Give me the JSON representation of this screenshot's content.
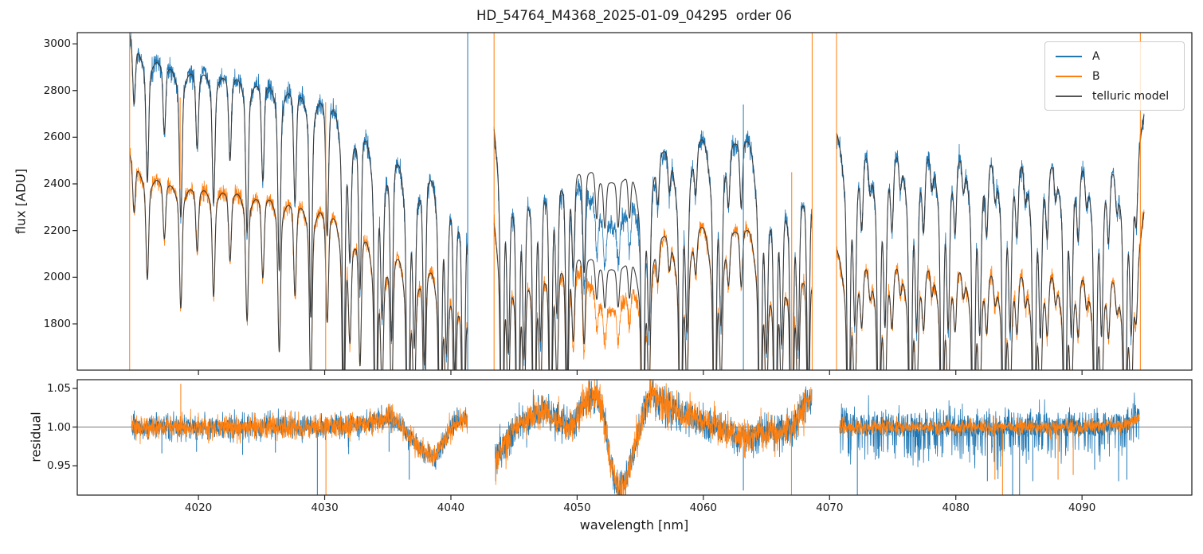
{
  "chart_data": {
    "type": "line",
    "title": "HD_54764_M4368_2025-01-09_04295  order 06",
    "xlabel": "wavelength [nm]",
    "xlim": [
      4010.4,
      4098.7
    ],
    "xticks": [
      4020,
      4030,
      4040,
      4050,
      4060,
      4070,
      4080,
      4090
    ],
    "xtick_labels": [
      "4020",
      "4030",
      "4040",
      "4050",
      "4060",
      "4070",
      "4080",
      "4090"
    ],
    "panels": [
      {
        "name": "flux",
        "ylabel": "flux [ADU]",
        "ylim": [
          1602,
          3048
        ],
        "yticks": [
          1800,
          2000,
          2200,
          2400,
          2600,
          2800,
          3000
        ],
        "ytick_labels": [
          "1800",
          "2000",
          "2200",
          "2400",
          "2600",
          "2800",
          "3000"
        ]
      },
      {
        "name": "residual",
        "ylabel": "residual",
        "ylim": [
          0.912,
          1.0613
        ],
        "yticks": [
          0.95,
          1.0,
          1.05
        ],
        "ytick_labels": [
          "0.95",
          "1.00",
          "1.05"
        ],
        "axhline": 1.0
      }
    ],
    "legend": [
      {
        "label": "A",
        "color": "#1f77b4"
      },
      {
        "label": "B",
        "color": "#ff7f0e"
      },
      {
        "label": "telluric model",
        "color": "#555555"
      }
    ],
    "colors": {
      "A": "#1f77b4",
      "B": "#ff7f0e",
      "model": "#3d3d3d",
      "frame": "#262626",
      "axhline": "#666666"
    },
    "seed": 7,
    "step": 0.018,
    "segments": [
      [
        4014.55,
        4041.33
      ],
      [
        4043.42,
        4068.62
      ],
      [
        4070.55,
        4094.92
      ]
    ],
    "telluric": {
      "narrow_sigma": 0.1,
      "wing_sigma": 0.42,
      "wing_frac": 0.3,
      "doublet_min_depth": 0.3,
      "doublet_offset": 0.5,
      "doublet_ratio": 0.45,
      "lines": [
        [
          4014.9,
          0.08
        ],
        [
          4015.95,
          0.15
        ],
        [
          4017.3,
          0.09
        ],
        [
          4018.6,
          0.18
        ],
        [
          4019.9,
          0.1
        ],
        [
          4021.2,
          0.16
        ],
        [
          4022.5,
          0.11
        ],
        [
          4023.85,
          0.19
        ],
        [
          4025.1,
          0.13
        ],
        [
          4026.4,
          0.23
        ],
        [
          4027.65,
          0.15
        ],
        [
          4028.9,
          0.28
        ],
        [
          4030.2,
          0.18
        ],
        [
          4031.5,
          0.34
        ],
        [
          4032.8,
          0.22
        ],
        [
          4034.05,
          0.42
        ],
        [
          4035.3,
          0.26
        ],
        [
          4036.6,
          0.46
        ],
        [
          4037.9,
          0.28
        ],
        [
          4039.15,
          0.45
        ],
        [
          4040.3,
          0.26
        ],
        [
          4041.0,
          0.4
        ],
        [
          4044.05,
          0.48
        ],
        [
          4045.3,
          0.5
        ],
        [
          4046.6,
          0.46
        ],
        [
          4047.9,
          0.4
        ],
        [
          4049.2,
          0.3
        ],
        [
          4050.55,
          0.16
        ],
        [
          4051.55,
          0.07
        ],
        [
          4052.2,
          0.075
        ],
        [
          4053.25,
          0.075
        ],
        [
          4054.15,
          0.07
        ],
        [
          4055.2,
          0.42
        ],
        [
          4056.4,
          0.07
        ],
        [
          4057.3,
          0.06
        ],
        [
          4058.2,
          0.44
        ],
        [
          4059.4,
          0.07
        ],
        [
          4060.9,
          0.43
        ],
        [
          4062.0,
          0.08
        ],
        [
          4063.0,
          0.1
        ],
        [
          4064.5,
          0.45
        ],
        [
          4065.7,
          0.44
        ],
        [
          4067.0,
          0.46
        ],
        [
          4068.3,
          0.3
        ],
        [
          4071.5,
          0.42
        ],
        [
          4072.55,
          0.1
        ],
        [
          4073.2,
          0.05
        ],
        [
          4073.9,
          0.42
        ],
        [
          4074.95,
          0.1
        ],
        [
          4075.6,
          0.05
        ],
        [
          4076.4,
          0.43
        ],
        [
          4077.45,
          0.1
        ],
        [
          4078.1,
          0.05
        ],
        [
          4078.9,
          0.42
        ],
        [
          4079.95,
          0.1
        ],
        [
          4080.6,
          0.05
        ],
        [
          4081.4,
          0.43
        ],
        [
          4082.45,
          0.1
        ],
        [
          4083.1,
          0.05
        ],
        [
          4083.8,
          0.42
        ],
        [
          4084.85,
          0.1
        ],
        [
          4085.5,
          0.05
        ],
        [
          4086.2,
          0.43
        ],
        [
          4087.25,
          0.1
        ],
        [
          4087.9,
          0.05
        ],
        [
          4088.65,
          0.42
        ],
        [
          4089.7,
          0.1
        ],
        [
          4090.35,
          0.05
        ],
        [
          4091.05,
          0.42
        ],
        [
          4092.1,
          0.1
        ],
        [
          4092.75,
          0.05
        ],
        [
          4093.4,
          0.42
        ],
        [
          4094.3,
          0.08
        ]
      ]
    },
    "broad_feature": {
      "center": 4052.75,
      "sigma": 1.8,
      "data_depth": {
        "A": 0.148,
        "B": 0.165
      },
      "model_depth": {
        "A": 0.075,
        "B": 0.085
      }
    },
    "flux_series": {
      "A": {
        "noise_sigma": 22,
        "base": [
          [
            4014.55,
            3090
          ],
          [
            4016,
            2990
          ],
          [
            4018,
            2950
          ],
          [
            4020,
            2935
          ],
          [
            4023,
            2915
          ],
          [
            4026,
            2900
          ],
          [
            4029,
            2875
          ],
          [
            4031,
            2830
          ],
          [
            4033,
            2755
          ],
          [
            4035,
            2670
          ],
          [
            4037,
            2612
          ],
          [
            4039,
            2588
          ],
          [
            4041.35,
            2580
          ],
          [
            4043.42,
            2770
          ],
          [
            4044.5,
            2712
          ],
          [
            4046,
            2700
          ],
          [
            4048,
            2678
          ],
          [
            4050,
            2668
          ],
          [
            4052,
            2660
          ],
          [
            4054,
            2648
          ],
          [
            4056,
            2625
          ],
          [
            4057,
            2612
          ],
          [
            4059,
            2630
          ],
          [
            4061,
            2650
          ],
          [
            4063,
            2645
          ],
          [
            4065,
            2628
          ],
          [
            4067,
            2606
          ],
          [
            4068.62,
            2600
          ],
          [
            4070.55,
            2645
          ],
          [
            4073,
            2632
          ],
          [
            4076,
            2626
          ],
          [
            4079,
            2616
          ],
          [
            4082,
            2606
          ],
          [
            4085,
            2596
          ],
          [
            4088,
            2586
          ],
          [
            4091,
            2572
          ],
          [
            4093.5,
            2565
          ],
          [
            4094.2,
            2600
          ],
          [
            4094.92,
            2730
          ]
        ]
      },
      "B": {
        "noise_sigma": 18,
        "base": [
          [
            4014.55,
            2570
          ],
          [
            4016,
            2472
          ],
          [
            4018,
            2442
          ],
          [
            4020,
            2427
          ],
          [
            4023,
            2412
          ],
          [
            4026,
            2402
          ],
          [
            4029,
            2382
          ],
          [
            4031,
            2347
          ],
          [
            4033,
            2292
          ],
          [
            4035,
            2232
          ],
          [
            4037,
            2188
          ],
          [
            4039,
            2162
          ],
          [
            4041.35,
            2155
          ],
          [
            4043.42,
            2345
          ],
          [
            4044.5,
            2295
          ],
          [
            4046,
            2288
          ],
          [
            4048,
            2278
          ],
          [
            4050,
            2275
          ],
          [
            4052,
            2272
          ],
          [
            4054,
            2262
          ],
          [
            4056,
            2248
          ],
          [
            4057,
            2240
          ],
          [
            4059,
            2252
          ],
          [
            4061,
            2262
          ],
          [
            4063,
            2255
          ],
          [
            4065,
            2242
          ],
          [
            4067,
            2226
          ],
          [
            4068.62,
            2230
          ],
          [
            4070.55,
            2142
          ],
          [
            4073,
            2132
          ],
          [
            4076,
            2126
          ],
          [
            4079,
            2116
          ],
          [
            4082,
            2106
          ],
          [
            4085,
            2100
          ],
          [
            4088,
            2092
          ],
          [
            4091,
            2082
          ],
          [
            4093.5,
            2078
          ],
          [
            4094.2,
            2105
          ],
          [
            4094.92,
            2310
          ]
        ]
      }
    },
    "flux_spikes": [
      [
        4014.55,
        "B",
        "top",
        "bottom"
      ],
      [
        4018.55,
        "B",
        2380,
        2770
      ],
      [
        4030.08,
        "B",
        2750,
        "bottom"
      ],
      [
        4041.33,
        "A",
        "top",
        "bottom"
      ],
      [
        4043.42,
        "B",
        "top",
        "bottom"
      ],
      [
        4063.17,
        "A",
        2740,
        "bottom"
      ],
      [
        4067.0,
        "B",
        2450,
        "bottom"
      ],
      [
        4068.62,
        "B",
        "top",
        "bottom"
      ],
      [
        4070.55,
        "B",
        "top",
        "bottom"
      ],
      [
        4094.62,
        "B",
        "top",
        "bottom"
      ]
    ],
    "residual": {
      "segments": [
        [
          4014.7,
          4041.33
        ],
        [
          4043.5,
          4068.6
        ],
        [
          4070.8,
          4094.55
        ]
      ],
      "noise_sigma": {
        "A": [
          0.0075,
          0.011,
          0.0105
        ],
        "B": [
          0.0075,
          0.011,
          0.0048
        ]
      },
      "down_tail": {
        "A": [
          1,
          1,
          1.8
        ],
        "B": [
          1,
          1,
          1
        ]
      },
      "mean": [
        [
          4014.7,
          1.0
        ],
        [
          4020,
          1.0
        ],
        [
          4026,
          1.0
        ],
        [
          4031,
          1.001
        ],
        [
          4033,
          1.004
        ],
        [
          4035,
          1.012
        ],
        [
          4036.2,
          1.0
        ],
        [
          4037.5,
          0.972
        ],
        [
          4038.7,
          0.96
        ],
        [
          4039.6,
          0.985
        ],
        [
          4040.5,
          1.01
        ],
        [
          4041.33,
          1.008
        ],
        [
          4043.5,
          0.958
        ],
        [
          4044.3,
          0.98
        ],
        [
          4045.2,
          1.0
        ],
        [
          4046.3,
          1.012
        ],
        [
          4047.3,
          1.02
        ],
        [
          4048.3,
          1.012
        ],
        [
          4049.2,
          0.998
        ],
        [
          4050.0,
          1.01
        ],
        [
          4050.8,
          1.035
        ],
        [
          4051.5,
          1.045
        ],
        [
          4052.0,
          1.02
        ],
        [
          4052.6,
          0.96
        ],
        [
          4053.2,
          0.92
        ],
        [
          4053.8,
          0.928
        ],
        [
          4054.6,
          0.975
        ],
        [
          4055.4,
          1.03
        ],
        [
          4056.0,
          1.045
        ],
        [
          4056.8,
          1.03
        ],
        [
          4058.0,
          1.018
        ],
        [
          4059.5,
          1.01
        ],
        [
          4061.0,
          1.0
        ],
        [
          4062.5,
          0.99
        ],
        [
          4063.5,
          0.988
        ],
        [
          4065.0,
          0.995
        ],
        [
          4066.3,
          0.992
        ],
        [
          4067.3,
          1.005
        ],
        [
          4068.1,
          1.028
        ],
        [
          4068.6,
          1.04
        ],
        [
          4070.8,
          1.0
        ],
        [
          4080,
          1.0
        ],
        [
          4090,
          1.0
        ],
        [
          4093.5,
          1.004
        ],
        [
          4094.55,
          1.014
        ]
      ],
      "spikes": [
        [
          4017.1,
          "A",
          0.966
        ],
        [
          4018.6,
          "B",
          1.056
        ],
        [
          4019.85,
          "A",
          0.968
        ],
        [
          4023.5,
          "A",
          0.964
        ],
        [
          4026.1,
          "A",
          0.967
        ],
        [
          4029.42,
          "A",
          0.912
        ],
        [
          4030.1,
          "B",
          0.912
        ],
        [
          4031.9,
          "A",
          0.965
        ],
        [
          4035.1,
          "A",
          0.968
        ],
        [
          4036.7,
          "A",
          0.932
        ],
        [
          4043.55,
          "A",
          0.93
        ],
        [
          4063.17,
          "A",
          0.918
        ],
        [
          4066.98,
          "B",
          0.912
        ],
        [
          4071.5,
          "A",
          0.962
        ],
        [
          4072.2,
          "A",
          0.912
        ],
        [
          4073.9,
          "A",
          0.96
        ],
        [
          4076.4,
          "A",
          0.963
        ],
        [
          4078.9,
          "A",
          0.961
        ],
        [
          4081.4,
          "A",
          0.964
        ],
        [
          4082.5,
          "A",
          0.93
        ],
        [
          4083.1,
          "B",
          0.932
        ],
        [
          4083.7,
          "B",
          0.912
        ],
        [
          4084.5,
          "A",
          0.912
        ],
        [
          4085.05,
          "A",
          0.912
        ],
        [
          4086.1,
          "A",
          0.93
        ],
        [
          4088.1,
          "B",
          0.932
        ],
        [
          4089.3,
          "B",
          0.938
        ],
        [
          4091.0,
          "A",
          0.945
        ],
        [
          4092.9,
          "A",
          0.93
        ],
        [
          4093.55,
          "A",
          0.932
        ]
      ]
    }
  }
}
